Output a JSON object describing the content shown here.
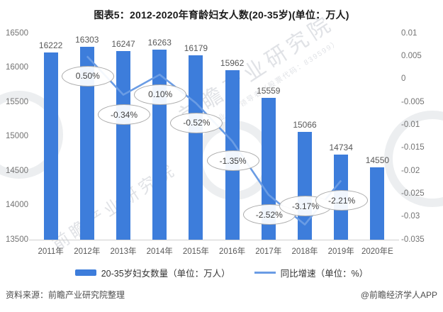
{
  "title": "图表5：2012-2020年育龄妇女人数(20-35岁)(单位：万人)",
  "chart_data": {
    "type": "bar+line",
    "categories": [
      "2011年",
      "2012年",
      "2013年",
      "2014年",
      "2015年",
      "2016年",
      "2017年",
      "2018年",
      "2019年",
      "2020年E"
    ],
    "series": [
      {
        "name": "20-35岁妇女数量（单位：万人）",
        "type": "bar",
        "values": [
          16222,
          16303,
          16247,
          16263,
          16179,
          15962,
          15559,
          15066,
          14734,
          14550
        ]
      },
      {
        "name": "同比增速（单位：%）",
        "type": "line",
        "points": [
          {
            "category": "2012年",
            "index": 1,
            "value_pct": 0.5,
            "label": "0.50%",
            "label_side": "below"
          },
          {
            "category": "2013年",
            "index": 2,
            "value_pct": -0.34,
            "label": "-0.34%",
            "label_side": "below"
          },
          {
            "category": "2014年",
            "index": 3,
            "value_pct": 0.1,
            "label": "0.10%",
            "label_side": "below"
          },
          {
            "category": "2015年",
            "index": 4,
            "value_pct": -0.52,
            "label": "-0.52%",
            "label_side": "below"
          },
          {
            "category": "2016年",
            "index": 5,
            "value_pct": -1.35,
            "label": "-1.35%",
            "label_side": "below"
          },
          {
            "category": "2017年",
            "index": 6,
            "value_pct": -2.52,
            "label": "-2.52%",
            "label_side": "below"
          },
          {
            "category": "2018年",
            "index": 7,
            "value_pct": -3.17,
            "label": "-3.17%",
            "label_side": "above"
          },
          {
            "category": "2019年",
            "index": 8,
            "value_pct": -2.21,
            "label": "-2.21%",
            "label_side": "below"
          }
        ]
      }
    ],
    "left_axis": {
      "min": 13500,
      "max": 16500,
      "ticks": [
        "16500",
        "16000",
        "15500",
        "15000",
        "14500",
        "14000",
        "13500"
      ]
    },
    "right_axis": {
      "min": -0.035,
      "max": 0.01,
      "ticks": [
        "0.01",
        "0.005",
        "0",
        "-0.005",
        "-0.01",
        "-0.015",
        "-0.02",
        "-0.025",
        "-0.03",
        "-0.035"
      ]
    },
    "grid": false,
    "legend_position": "bottom"
  },
  "colors": {
    "bar": "#3D7DDB",
    "line": "#6A9CE4",
    "ellipse_border": "#ABABAB",
    "axis_text": "#737373",
    "axis_line": "#CFCFCF"
  },
  "footer": {
    "source": "资料来源：前瞻产业研究院整理",
    "credit": "@前瞻经济学人APP"
  },
  "watermarks": {
    "main": "前瞻产业研究院",
    "sub": "中国产业咨询领导者（股票代码：839599）"
  }
}
